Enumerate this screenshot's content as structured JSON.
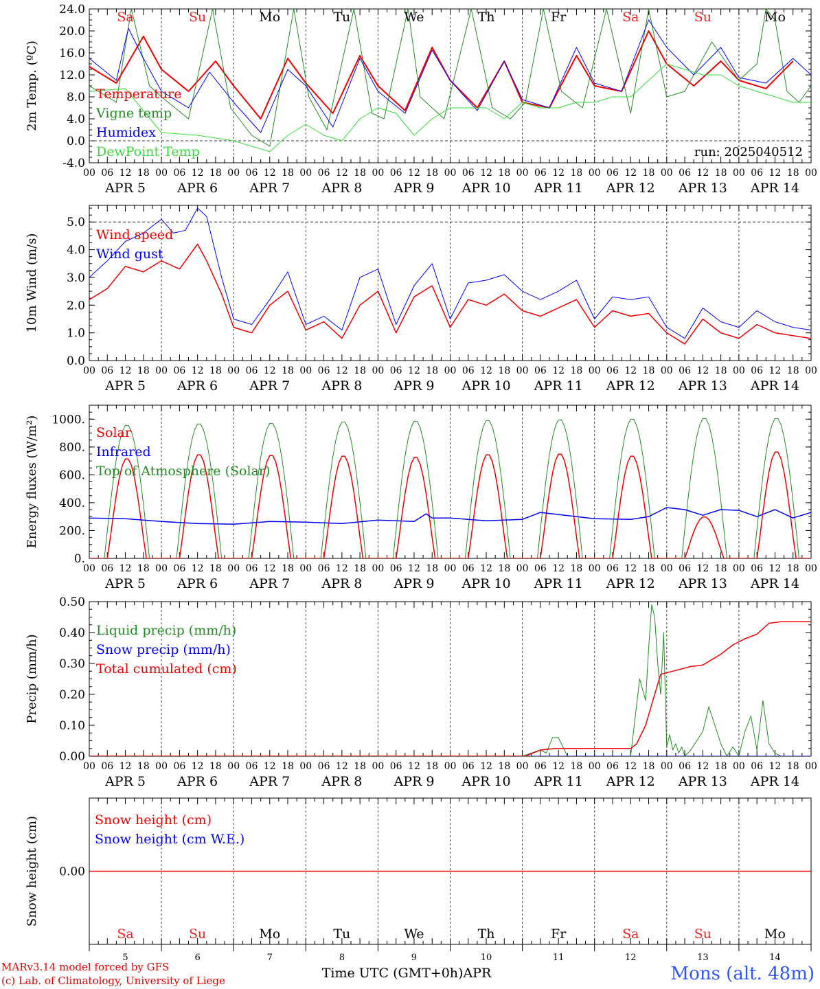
{
  "colors": {
    "red": "#ee0000",
    "green": "#228b22",
    "blue": "#0000ee",
    "lightgreen": "#33dd33",
    "grid": "#444444",
    "weekend": "#ee2222"
  },
  "days": {
    "abbr": [
      "Sa",
      "Su",
      "Mo",
      "Tu",
      "We",
      "Th",
      "Fr",
      "Sa",
      "Su",
      "Mo"
    ],
    "weekend": [
      true,
      true,
      false,
      false,
      false,
      false,
      false,
      true,
      true,
      false
    ],
    "dates": [
      "APR  5",
      "APR  6",
      "APR  7",
      "APR  8",
      "APR  9",
      "APR 10",
      "APR 11",
      "APR 12",
      "APR 13",
      "APR 14"
    ],
    "day_numbers": [
      "5",
      "6",
      "7",
      "8",
      "9",
      "10",
      "11",
      "12",
      "13",
      "14"
    ],
    "hour_labels": [
      "00",
      "06",
      "12",
      "18"
    ],
    "final_hour_label": "00"
  },
  "footer": {
    "model": "MARv3.14 model forced by GFS",
    "credit": "(c) Lab. of Climatology, University of Liege",
    "xlabel": "Time UTC (GMT+0h)",
    "month": "APR",
    "station": "Mons (alt. 48m)"
  },
  "chart_data": [
    {
      "type": "line",
      "ylabel": "2m Temp. (ºC)",
      "ylim": [
        -4,
        24
      ],
      "yticks": [
        "24.0",
        "20.0",
        "16.0",
        "12.0",
        "8.0",
        "4.0",
        "0.0",
        "-4.0"
      ],
      "ytick_values": [
        24,
        20,
        16,
        12,
        8,
        4,
        0,
        -4
      ],
      "dashed_ref": 0,
      "annotation": "run: 2025040512",
      "show_days": true,
      "legend": [
        "Temperature",
        "Vigne temp",
        "Humidex",
        "DewPoint Temp"
      ],
      "x_unit": "hours since APR 5 00 UTC",
      "series": [
        {
          "name": "Temperature",
          "color": "red",
          "width": 2,
          "x": [
            0,
            9,
            18,
            24,
            33,
            42,
            48,
            57,
            66,
            72,
            81,
            90,
            96,
            105,
            114,
            120,
            129,
            138,
            144,
            153,
            162,
            168,
            177,
            186,
            192,
            201,
            210,
            216,
            225,
            234
          ],
          "y": [
            13.5,
            10.5,
            19,
            13,
            9,
            14.5,
            10,
            4,
            15,
            10.5,
            5,
            15.5,
            10,
            5.5,
            17,
            11,
            6,
            14.5,
            7,
            6,
            15.5,
            10,
            9,
            20,
            14,
            10,
            14.5,
            11,
            9.5,
            14.5
          ]
        },
        {
          "name": "Vigne temp",
          "color": "green",
          "width": 1,
          "x": [
            0,
            9,
            14,
            20,
            24,
            33,
            41,
            47,
            54,
            60,
            68,
            73,
            79,
            88,
            94,
            98,
            106,
            110,
            118,
            127,
            134,
            140,
            145,
            151,
            157,
            164,
            172,
            180,
            186,
            192,
            198,
            207,
            216,
            222,
            225,
            228,
            232,
            236,
            240
          ],
          "y": [
            10,
            7,
            24,
            10,
            8,
            4,
            24,
            6,
            1,
            -1,
            24,
            8,
            2,
            24,
            5,
            4,
            24,
            8,
            4,
            24,
            6,
            4,
            7,
            24,
            9,
            6,
            24,
            5,
            24,
            8,
            9,
            18,
            11,
            14,
            24,
            22,
            9,
            7,
            10
          ]
        },
        {
          "name": "Humidex",
          "color": "blue",
          "width": 1,
          "x": [
            0,
            9,
            13,
            18,
            24,
            33,
            40,
            48,
            57,
            66,
            72,
            81,
            90,
            96,
            105,
            114,
            120,
            129,
            138,
            144,
            153,
            162,
            168,
            177,
            186,
            192,
            201,
            210,
            216,
            225,
            234,
            240
          ],
          "y": [
            15,
            11,
            20.5,
            15,
            9,
            6,
            12.5,
            7,
            1.5,
            13,
            10,
            2.5,
            15,
            9,
            5,
            16.5,
            11,
            5.5,
            14.5,
            7.5,
            6,
            17,
            10.5,
            9,
            22,
            17,
            12,
            17,
            11.5,
            10.5,
            15,
            12
          ]
        },
        {
          "name": "DewPoint Temp",
          "color": "lightgreen",
          "width": 1,
          "x": [
            0,
            12,
            24,
            36,
            48,
            54,
            60,
            66,
            72,
            78,
            84,
            90,
            96,
            102,
            108,
            114,
            120,
            126,
            132,
            138,
            144,
            150,
            156,
            162,
            168,
            174,
            180,
            186,
            192,
            198,
            204,
            210,
            216,
            222,
            228,
            234,
            240
          ],
          "y": [
            9,
            9.5,
            1.5,
            1,
            0,
            -1,
            -2,
            1,
            3,
            1,
            0,
            4,
            6,
            5,
            1,
            4,
            6,
            6,
            6,
            4,
            7,
            6,
            6,
            7,
            7,
            8,
            8,
            11,
            14,
            13,
            12,
            12,
            10,
            9,
            8,
            7,
            7
          ]
        }
      ]
    },
    {
      "type": "line",
      "ylabel": "10m Wind (m/s)",
      "ylim": [
        0,
        5.6
      ],
      "yticks": [
        "5.0",
        "4.0",
        "3.0",
        "2.0",
        "1.0",
        "0.0"
      ],
      "ytick_values": [
        5,
        4,
        3,
        2,
        1,
        0
      ],
      "dashed_ref": 5,
      "show_days": false,
      "legend": [
        "Wind speed",
        "Wind gust"
      ],
      "series": [
        {
          "name": "Wind speed",
          "color": "red",
          "width": 1.5,
          "x": [
            0,
            6,
            12,
            18,
            24,
            30,
            36,
            39,
            44,
            48,
            54,
            60,
            66,
            72,
            78,
            84,
            90,
            96,
            102,
            108,
            114,
            120,
            126,
            132,
            138,
            144,
            150,
            156,
            162,
            168,
            174,
            180,
            186,
            192,
            198,
            204,
            210,
            216,
            222,
            228,
            234,
            240
          ],
          "y": [
            2.2,
            2.6,
            3.4,
            3.2,
            3.6,
            3.3,
            4.2,
            3.6,
            2.4,
            1.2,
            1.0,
            2.0,
            2.5,
            1.1,
            1.4,
            0.8,
            2.0,
            2.5,
            1.0,
            2.3,
            2.7,
            1.2,
            2.2,
            2.0,
            2.4,
            1.8,
            1.6,
            1.9,
            2.2,
            1.2,
            1.8,
            1.6,
            1.7,
            1.0,
            0.6,
            1.5,
            1.0,
            0.8,
            1.3,
            1.0,
            0.9,
            0.8
          ]
        },
        {
          "name": "Wind gust",
          "color": "blue",
          "width": 1,
          "x": [
            0,
            6,
            12,
            18,
            24,
            28,
            32,
            36,
            39,
            44,
            48,
            54,
            60,
            66,
            72,
            78,
            84,
            90,
            96,
            102,
            108,
            114,
            120,
            126,
            132,
            138,
            144,
            150,
            156,
            162,
            168,
            174,
            180,
            186,
            192,
            198,
            204,
            210,
            216,
            222,
            228,
            234,
            240
          ],
          "y": [
            3.0,
            3.6,
            4.3,
            4.6,
            5.1,
            4.6,
            4.7,
            5.5,
            5.2,
            3.0,
            1.5,
            1.3,
            2.2,
            3.2,
            1.3,
            1.6,
            1.1,
            3.0,
            3.3,
            1.3,
            2.7,
            3.5,
            1.5,
            2.8,
            2.9,
            3.1,
            2.5,
            2.2,
            2.5,
            2.9,
            1.5,
            2.3,
            2.2,
            2.3,
            1.2,
            0.8,
            1.9,
            1.4,
            1.2,
            1.8,
            1.4,
            1.2,
            1.1
          ]
        }
      ]
    },
    {
      "type": "line",
      "ylabel": "Energy fluxes (W/m²)",
      "ylim": [
        0,
        1100
      ],
      "yticks": [
        "1000.",
        "800.",
        "600.",
        "400.",
        "200.",
        "0."
      ],
      "ytick_values": [
        1000,
        800,
        600,
        400,
        200,
        0
      ],
      "show_days": false,
      "legend": [
        "Solar",
        "Infrared",
        "Top of Atmosphere (Solar)"
      ],
      "solar_peaks": [
        720,
        750,
        745,
        740,
        730,
        750,
        755,
        740,
        300,
        770
      ],
      "toa_peaks": [
        960,
        970,
        975,
        985,
        990,
        995,
        1000,
        1005,
        1010,
        1010
      ],
      "series": [
        {
          "name": "Infrared",
          "color": "blue",
          "width": 1.5,
          "x": [
            0,
            12,
            24,
            36,
            48,
            60,
            72,
            84,
            96,
            108,
            112,
            114,
            120,
            132,
            144,
            150,
            168,
            180,
            186,
            192,
            198,
            204,
            210,
            216,
            222,
            228,
            234,
            240
          ],
          "y": [
            290,
            285,
            265,
            250,
            245,
            265,
            260,
            250,
            275,
            265,
            320,
            290,
            290,
            270,
            280,
            330,
            285,
            280,
            300,
            365,
            350,
            310,
            350,
            345,
            300,
            350,
            290,
            330
          ]
        }
      ]
    },
    {
      "type": "line",
      "ylabel": "Precip (mm/h)",
      "ylim": [
        0,
        0.5
      ],
      "yticks": [
        "0.50",
        "0.40",
        "0.30",
        "0.20",
        "0.10",
        "0.00"
      ],
      "ytick_values": [
        0.5,
        0.4,
        0.3,
        0.2,
        0.1,
        0
      ],
      "show_days": false,
      "legend": [
        "Liquid precip (mm/h)",
        "Snow precip (mm/h)",
        "Total cumulated (cm)"
      ],
      "series": [
        {
          "name": "Liquid precip (mm/h)",
          "color": "green",
          "width": 1,
          "x": [
            144,
            147,
            150,
            152,
            154,
            156,
            159,
            162,
            180,
            183,
            185,
            186,
            187,
            188,
            189,
            190,
            191,
            192,
            193,
            194,
            195,
            196,
            197,
            198,
            200,
            202,
            204,
            206,
            208,
            210,
            212,
            214,
            216,
            218,
            220,
            222,
            224,
            226,
            228,
            230,
            240
          ],
          "y": [
            0,
            0.01,
            0.02,
            0.01,
            0.06,
            0.06,
            0,
            0,
            0,
            0.25,
            0.18,
            0.35,
            0.49,
            0.45,
            0.3,
            0.2,
            0.4,
            0.03,
            0.07,
            0.02,
            0.04,
            0.01,
            0.03,
            0,
            0.02,
            0.05,
            0.08,
            0.16,
            0.1,
            0.04,
            0,
            0.03,
            0,
            0.08,
            0.13,
            0.02,
            0.18,
            0.04,
            0.01,
            0,
            0
          ]
        },
        {
          "name": "Snow precip (mm/h)",
          "color": "blue",
          "width": 1,
          "x": [
            0,
            240
          ],
          "y": [
            0,
            0
          ]
        },
        {
          "name": "Total cumulated (cm)",
          "color": "red",
          "width": 1.5,
          "x": [
            0,
            145,
            150,
            155,
            180,
            182,
            185,
            188,
            190,
            194,
            200,
            204,
            210,
            214,
            218,
            222,
            226,
            230,
            240
          ],
          "y": [
            0,
            0,
            0.02,
            0.025,
            0.025,
            0.04,
            0.1,
            0.2,
            0.265,
            0.275,
            0.29,
            0.295,
            0.33,
            0.36,
            0.38,
            0.395,
            0.43,
            0.435,
            0.435
          ]
        }
      ]
    },
    {
      "type": "line",
      "ylabel": "Snow height (cm)",
      "ylim": [
        -0.5,
        0.5
      ],
      "yticks": [
        "0.00"
      ],
      "ytick_values": [
        0
      ],
      "show_days": false,
      "legend": [
        "Snow height (cm)",
        "Snow height (cm W.E.)"
      ],
      "series": [
        {
          "name": "Snow height (cm)",
          "color": "red",
          "width": 1.5,
          "x": [
            0,
            240
          ],
          "y": [
            0,
            0
          ]
        }
      ]
    }
  ]
}
